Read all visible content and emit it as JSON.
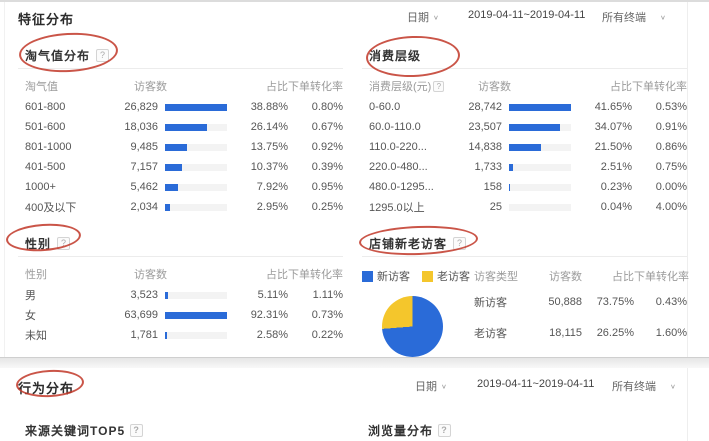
{
  "icons": {
    "help": "?",
    "chevron_down": "∨"
  },
  "colors": {
    "bar_blue": "#2a6bd8",
    "pie_yellow": "#f4c62c",
    "annotation_red": "#c13728"
  },
  "feature": {
    "title": "特征分布",
    "date_label": "日期",
    "date_range": "2019-04-11~2019-04-11",
    "terminal": "所有终端",
    "taoqi": {
      "title": "淘气值分布",
      "columns": [
        "淘气值",
        "访客数",
        "占比",
        "下单转化率"
      ],
      "rows": [
        {
          "label": "601-800",
          "visitors": "26,829",
          "share": "38.88%",
          "share_num": 38.88,
          "cvr": "0.80%"
        },
        {
          "label": "501-600",
          "visitors": "18,036",
          "share": "26.14%",
          "share_num": 26.14,
          "cvr": "0.67%"
        },
        {
          "label": "801-1000",
          "visitors": "9,485",
          "share": "13.75%",
          "share_num": 13.75,
          "cvr": "0.92%"
        },
        {
          "label": "401-500",
          "visitors": "7,157",
          "share": "10.37%",
          "share_num": 10.37,
          "cvr": "0.39%"
        },
        {
          "label": "1000+",
          "visitors": "5,462",
          "share": "7.92%",
          "share_num": 7.92,
          "cvr": "0.95%"
        },
        {
          "label": "400及以下",
          "visitors": "2,034",
          "share": "2.95%",
          "share_num": 2.95,
          "cvr": "0.25%"
        }
      ]
    },
    "consume": {
      "title": "消费层级",
      "columns": [
        "消费层级(元)",
        "访客数",
        "占比",
        "下单转化率"
      ],
      "rows": [
        {
          "label": "0-60.0",
          "visitors": "28,742",
          "share": "41.65%",
          "share_num": 41.65,
          "cvr": "0.53%"
        },
        {
          "label": "60.0-110.0",
          "visitors": "23,507",
          "share": "34.07%",
          "share_num": 34.07,
          "cvr": "0.91%"
        },
        {
          "label": "110.0-220...",
          "visitors": "14,838",
          "share": "21.50%",
          "share_num": 21.5,
          "cvr": "0.86%"
        },
        {
          "label": "220.0-480...",
          "visitors": "1,733",
          "share": "2.51%",
          "share_num": 2.51,
          "cvr": "0.75%"
        },
        {
          "label": "480.0-1295...",
          "visitors": "158",
          "share": "0.23%",
          "share_num": 0.23,
          "cvr": "0.00%"
        },
        {
          "label": "1295.0以上",
          "visitors": "25",
          "share": "0.04%",
          "share_num": 0.04,
          "cvr": "4.00%"
        }
      ]
    },
    "gender": {
      "title": "性别",
      "columns": [
        "性别",
        "访客数",
        "占比",
        "下单转化率"
      ],
      "rows": [
        {
          "label": "男",
          "visitors": "3,523",
          "share": "5.11%",
          "share_num": 5.11,
          "cvr": "1.11%"
        },
        {
          "label": "女",
          "visitors": "63,699",
          "share": "92.31%",
          "share_num": 92.31,
          "cvr": "0.73%"
        },
        {
          "label": "未知",
          "visitors": "1,781",
          "share": "2.58%",
          "share_num": 2.58,
          "cvr": "0.22%"
        }
      ]
    },
    "newold": {
      "title": "店铺新老访客",
      "legend": [
        {
          "label": "新访客",
          "color": "#2a6bd8"
        },
        {
          "label": "老访客",
          "color": "#f4c62c"
        }
      ],
      "columns": [
        "访客类型",
        "访客数",
        "占比",
        "下单转化率"
      ],
      "rows": [
        {
          "label": "新访客",
          "visitors": "50,888",
          "share": "73.75%",
          "cvr": "0.43%"
        },
        {
          "label": "老访客",
          "visitors": "18,115",
          "share": "26.25%",
          "cvr": "1.60%"
        }
      ],
      "chart": {
        "type": "pie",
        "slices": [
          {
            "label": "新访客",
            "value": 73.75,
            "color": "#2a6bd8"
          },
          {
            "label": "老访客",
            "value": 26.25,
            "color": "#f4c62c"
          }
        ]
      }
    }
  },
  "behavior": {
    "title": "行为分布",
    "date_label": "日期",
    "date_range": "2019-04-11~2019-04-11",
    "terminal": "所有终端",
    "panels": [
      {
        "title": "来源关键词TOP5"
      },
      {
        "title": "浏览量分布"
      }
    ]
  }
}
